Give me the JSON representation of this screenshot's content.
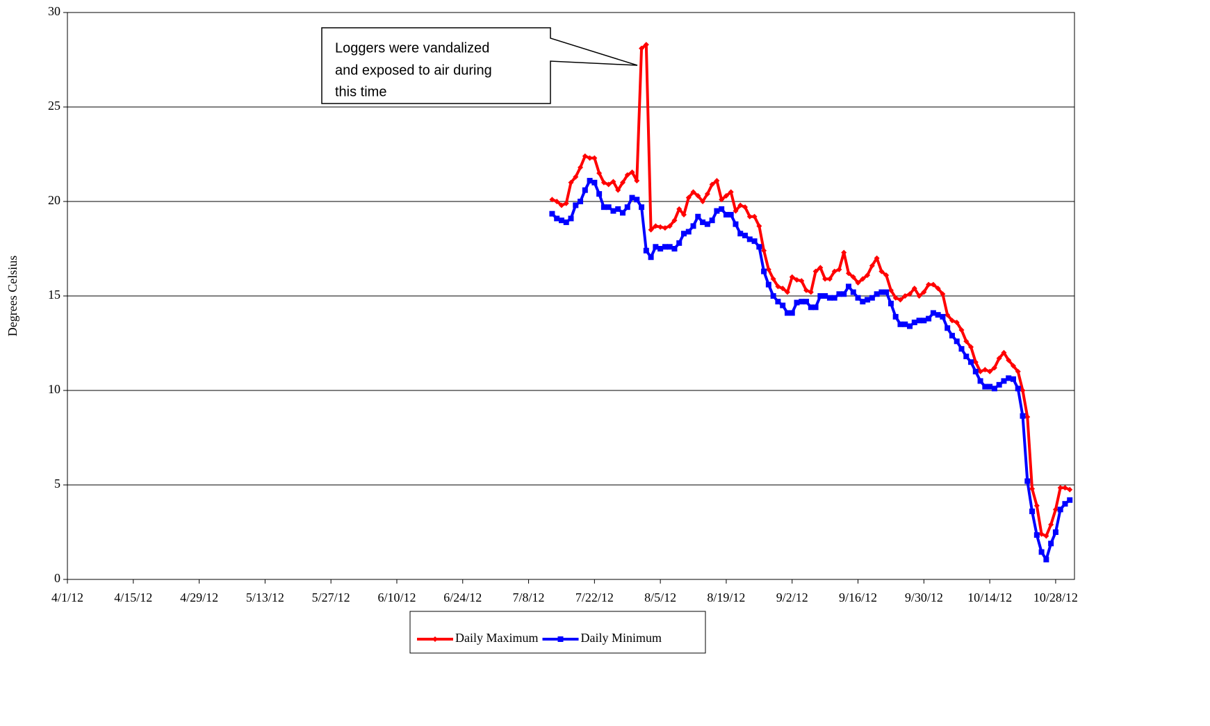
{
  "chart_data": {
    "type": "line",
    "annotation": [
      "Loggers were vandalized",
      "and exposed to air during",
      "this time"
    ],
    "y_label": "Degrees Celsius",
    "x": [
      "7/13/12",
      "7/14/12",
      "7/15/12",
      "7/16/12",
      "7/17/12",
      "7/18/12",
      "7/19/12",
      "7/20/12",
      "7/21/12",
      "7/22/12",
      "7/23/12",
      "7/24/12",
      "7/25/12",
      "7/26/12",
      "7/27/12",
      "7/28/12",
      "7/29/12",
      "7/30/12",
      "7/31/12",
      "8/1/12",
      "8/2/12",
      "8/3/12",
      "8/4/12",
      "8/5/12",
      "8/6/12",
      "8/7/12",
      "8/8/12",
      "8/9/12",
      "8/10/12",
      "8/11/12",
      "8/12/12",
      "8/13/12",
      "8/14/12",
      "8/15/12",
      "8/16/12",
      "8/17/12",
      "8/18/12",
      "8/19/12",
      "8/20/12",
      "8/21/12",
      "8/22/12",
      "8/23/12",
      "8/24/12",
      "8/25/12",
      "8/26/12",
      "8/27/12",
      "8/28/12",
      "8/29/12",
      "8/30/12",
      "8/31/12",
      "9/1/12",
      "9/2/12",
      "9/3/12",
      "9/4/12",
      "9/5/12",
      "9/6/12",
      "9/7/12",
      "9/8/12",
      "9/9/12",
      "9/10/12",
      "9/11/12",
      "9/12/12",
      "9/13/12",
      "9/14/12",
      "9/15/12",
      "9/16/12",
      "9/17/12",
      "9/18/12",
      "9/19/12",
      "9/20/12",
      "9/21/12",
      "9/22/12",
      "9/23/12",
      "9/24/12",
      "9/25/12",
      "9/26/12",
      "9/27/12",
      "9/28/12",
      "9/29/12",
      "9/30/12",
      "10/1/12",
      "10/2/12",
      "10/3/12",
      "10/4/12",
      "10/5/12",
      "10/6/12",
      "10/7/12",
      "10/8/12",
      "10/9/12",
      "10/10/12",
      "10/11/12",
      "10/12/12",
      "10/13/12",
      "10/14/12",
      "10/15/12",
      "10/16/12",
      "10/17/12",
      "10/18/12",
      "10/19/12",
      "10/20/12",
      "10/21/12",
      "10/22/12",
      "10/23/12",
      "10/24/12",
      "10/25/12",
      "10/26/12",
      "10/27/12",
      "10/28/12",
      "10/29/12",
      "10/30/12",
      "10/31/12"
    ],
    "series": [
      {
        "name": "Daily Maximum",
        "color": "#ff0000",
        "marker": "diamond",
        "values": [
          20.1,
          20.0,
          19.8,
          19.9,
          21.0,
          21.3,
          21.8,
          22.4,
          22.3,
          22.3,
          21.5,
          21.0,
          20.9,
          21.05,
          20.6,
          21.0,
          21.4,
          21.55,
          21.1,
          28.1,
          28.3,
          18.5,
          18.7,
          18.65,
          18.6,
          18.7,
          19.0,
          19.6,
          19.3,
          20.2,
          20.5,
          20.3,
          20.0,
          20.4,
          20.9,
          21.1,
          20.1,
          20.3,
          20.5,
          19.5,
          19.8,
          19.7,
          19.2,
          19.2,
          18.7,
          17.4,
          16.4,
          15.9,
          15.5,
          15.4,
          15.2,
          16.0,
          15.85,
          15.8,
          15.3,
          15.2,
          16.3,
          16.5,
          15.9,
          15.9,
          16.3,
          16.4,
          17.3,
          16.2,
          16.0,
          15.7,
          15.9,
          16.1,
          16.6,
          17.0,
          16.3,
          16.1,
          15.3,
          14.9,
          14.8,
          15.0,
          15.1,
          15.4,
          15.0,
          15.2,
          15.6,
          15.6,
          15.4,
          15.1,
          14.0,
          13.7,
          13.6,
          13.2,
          12.6,
          12.3,
          11.5,
          11.0,
          11.1,
          11.0,
          11.2,
          11.7,
          12.0,
          11.6,
          11.3,
          11.0,
          10.0,
          8.6,
          4.8,
          3.9,
          2.4,
          2.3,
          2.9,
          3.7,
          4.85,
          4.85,
          4.75
        ]
      },
      {
        "name": "Daily Minimum",
        "color": "#0000ff",
        "marker": "square",
        "values": [
          19.35,
          19.1,
          19.0,
          18.9,
          19.1,
          19.8,
          20.0,
          20.6,
          21.1,
          21.0,
          20.4,
          19.7,
          19.7,
          19.5,
          19.6,
          19.4,
          19.7,
          20.2,
          20.1,
          19.7,
          17.4,
          17.05,
          17.6,
          17.5,
          17.6,
          17.6,
          17.5,
          17.8,
          18.3,
          18.4,
          18.7,
          19.2,
          18.9,
          18.8,
          19.0,
          19.5,
          19.6,
          19.3,
          19.3,
          18.8,
          18.3,
          18.2,
          18.0,
          17.9,
          17.6,
          16.3,
          15.6,
          15.0,
          14.7,
          14.5,
          14.1,
          14.1,
          14.65,
          14.7,
          14.7,
          14.4,
          14.4,
          15.0,
          15.0,
          14.9,
          14.9,
          15.1,
          15.1,
          15.5,
          15.2,
          14.9,
          14.7,
          14.8,
          14.9,
          15.1,
          15.2,
          15.2,
          14.6,
          13.9,
          13.5,
          13.5,
          13.4,
          13.6,
          13.7,
          13.7,
          13.8,
          14.1,
          14.0,
          13.9,
          13.3,
          12.9,
          12.6,
          12.2,
          11.8,
          11.5,
          11.0,
          10.5,
          10.2,
          10.2,
          10.1,
          10.3,
          10.5,
          10.65,
          10.6,
          10.1,
          8.65,
          5.2,
          3.6,
          2.35,
          1.45,
          1.05,
          1.9,
          2.5,
          3.7,
          4.0,
          4.2
        ]
      }
    ],
    "xlim": [
      "4/1/12",
      "11/1/12"
    ],
    "xticks": [
      "4/1/12",
      "4/15/12",
      "4/29/12",
      "5/13/12",
      "5/27/12",
      "6/10/12",
      "6/24/12",
      "7/8/12",
      "7/22/12",
      "8/5/12",
      "8/19/12",
      "9/2/12",
      "9/16/12",
      "9/30/12",
      "10/14/12",
      "10/28/12"
    ],
    "ylim": [
      0,
      30
    ],
    "yticks": [
      0,
      5,
      10,
      15,
      20,
      25,
      30
    ],
    "grid": true,
    "legend": "bottom"
  }
}
